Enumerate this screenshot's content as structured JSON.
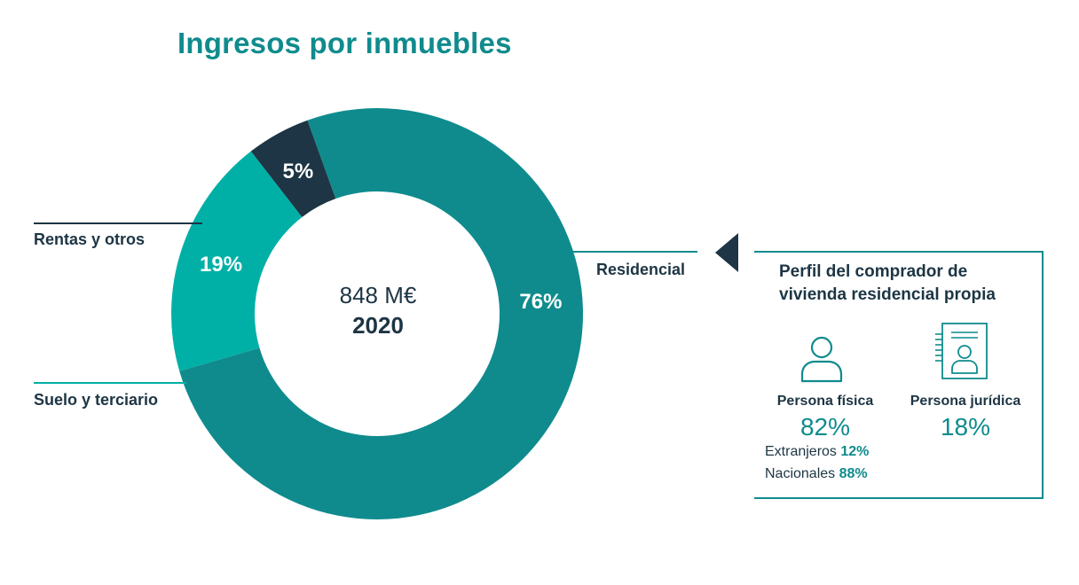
{
  "title": "Ingresos por inmuebles",
  "chart_data": {
    "type": "pie",
    "categories": [
      "Residencial",
      "Suelo y terciario",
      "Rentas y otros"
    ],
    "values": [
      76,
      19,
      5
    ],
    "data_labels": [
      "76%",
      "19%",
      "5%"
    ],
    "colors": [
      "#0f8b8d",
      "#00b0a6",
      "#1d3544"
    ],
    "total_label": "848 M€",
    "year_label": "2020"
  },
  "profile": {
    "title_line1": "Perfil del comprador de",
    "title_line2": "vivienda residencial propia",
    "fisica": {
      "label": "Persona física",
      "value": "82%",
      "extranjeros_label": "Extranjeros",
      "extranjeros_value": "12%",
      "nacionales_label": "Nacionales",
      "nacionales_value": "88%"
    },
    "juridica": {
      "label": "Persona jurídica",
      "value": "18%"
    },
    "icons": [
      "person-icon",
      "document-person-icon"
    ]
  }
}
